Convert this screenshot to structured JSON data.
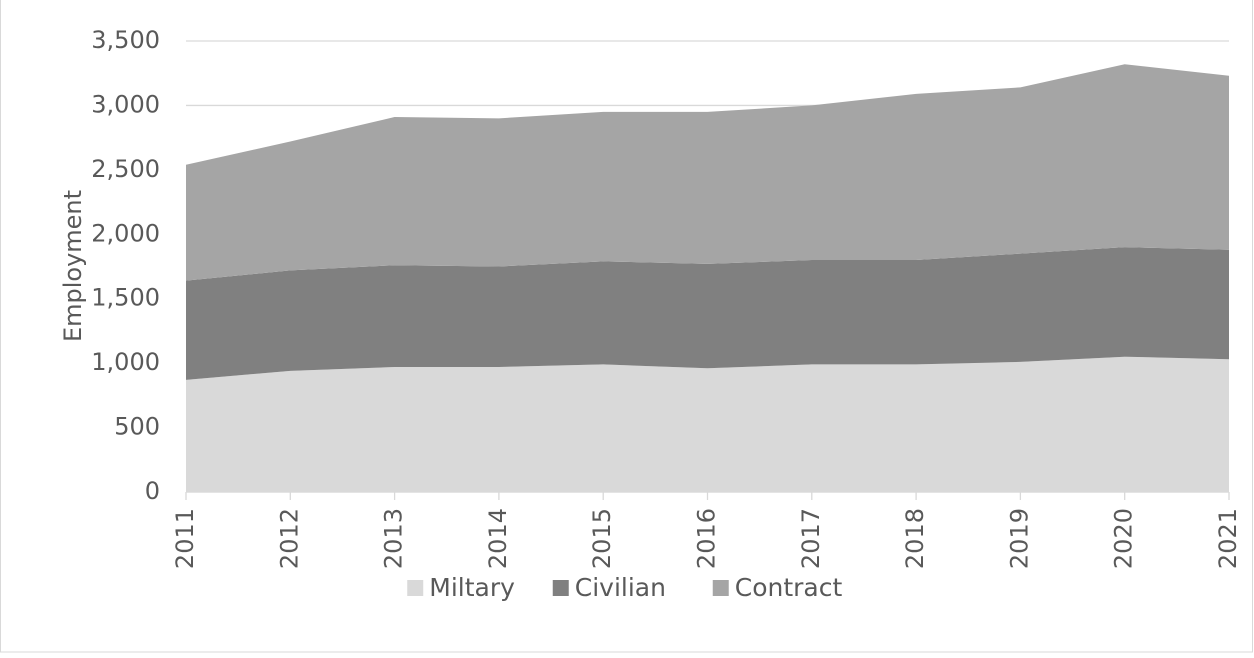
{
  "chart_data": {
    "type": "stacked_area",
    "y_label": "Employment",
    "categories": [
      "2011",
      "2012",
      "2013",
      "2014",
      "2015",
      "2016",
      "2017",
      "2018",
      "2019",
      "2020",
      "2021"
    ],
    "series": [
      {
        "name": "Miltary",
        "color": "#d9d9d9",
        "values": [
          870,
          940,
          970,
          970,
          990,
          960,
          990,
          990,
          1010,
          1050,
          1030
        ]
      },
      {
        "name": "Civilian",
        "color": "#808080",
        "values": [
          770,
          780,
          790,
          780,
          800,
          810,
          810,
          810,
          840,
          850,
          850
        ]
      },
      {
        "name": "Contract",
        "color": "#a5a5a5",
        "values": [
          900,
          1000,
          1150,
          1150,
          1160,
          1180,
          1200,
          1290,
          1290,
          1420,
          1350
        ]
      }
    ],
    "ylim": [
      0,
      3500
    ],
    "yticks": [
      0,
      500,
      {
        "value": 1000,
        "label": "1,000"
      },
      {
        "value": 1500,
        "label": "1,500"
      },
      {
        "value": 2000,
        "label": "2,000"
      },
      {
        "value": 2500,
        "label": "2,500"
      },
      {
        "value": 3000,
        "label": "3,000"
      },
      {
        "value": 3500,
        "label": "3,500"
      }
    ],
    "grid": true,
    "legend": "bottom"
  }
}
